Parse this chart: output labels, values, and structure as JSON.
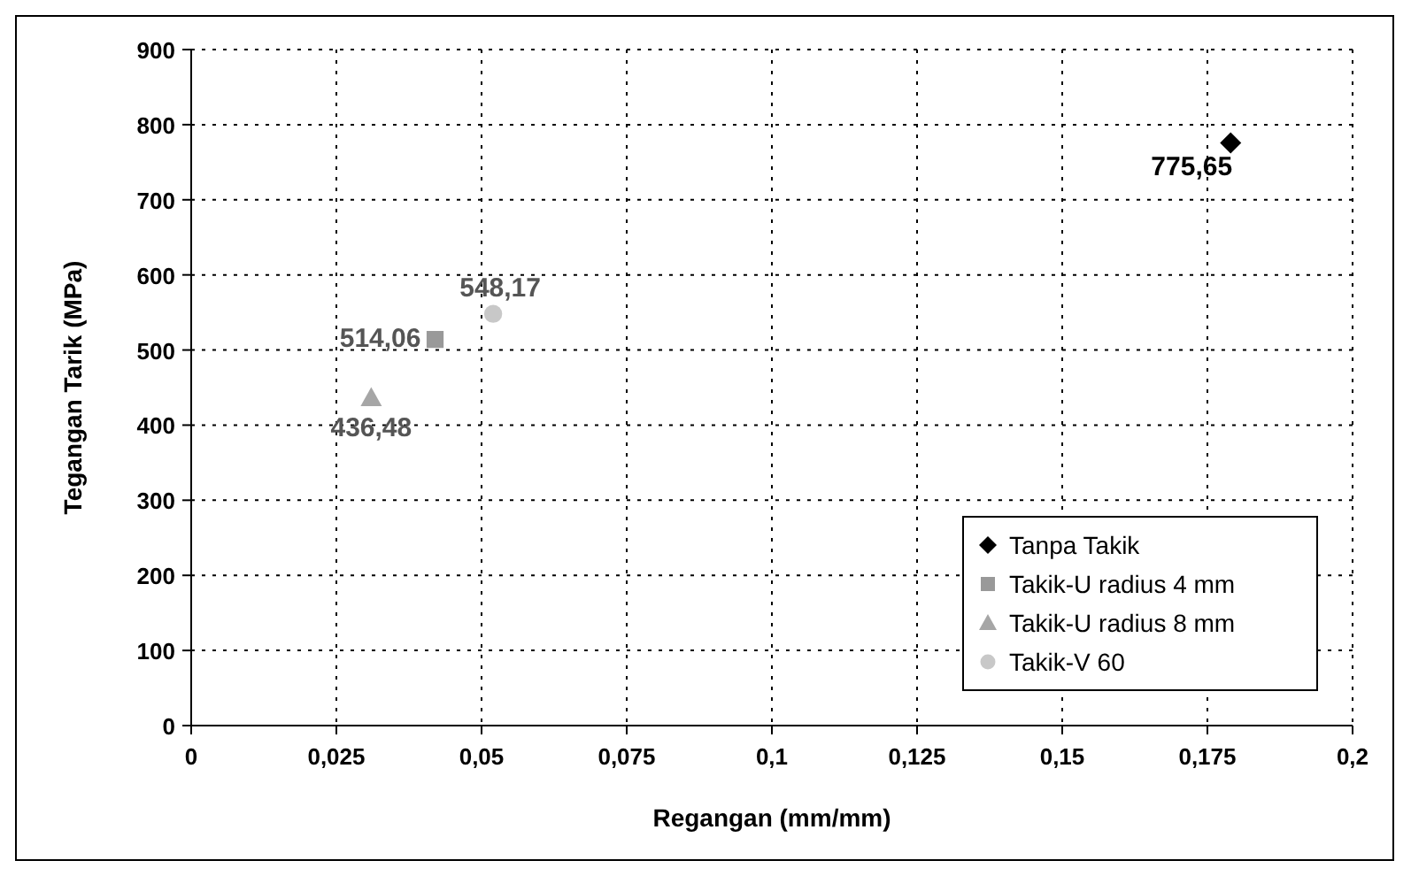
{
  "chart_data": {
    "type": "scatter",
    "xlabel": "Regangan (mm/mm)",
    "ylabel": "Tegangan Tarik (MPa)",
    "xlim": [
      0,
      0.2
    ],
    "xticks": [
      0,
      {
        "value": 0.025,
        "label": "0,025"
      },
      {
        "value": 0.05,
        "label": "0,05"
      },
      {
        "value": 0.075,
        "label": "0,075"
      },
      {
        "value": 0.1,
        "label": "0,1"
      },
      {
        "value": 0.125,
        "label": "0,125"
      },
      {
        "value": 0.15,
        "label": "0,15"
      },
      {
        "value": 0.175,
        "label": "0,175"
      },
      {
        "value": 0.2,
        "label": "0,2"
      }
    ],
    "ylim": [
      0,
      900
    ],
    "yticks": [
      0,
      100,
      200,
      300,
      400,
      500,
      600,
      700,
      800,
      900
    ],
    "grid": true,
    "legend": "bottom right",
    "series": [
      {
        "name": "Tanpa Takik",
        "color": "#000000",
        "marker": "diamond",
        "x": [
          0.179
        ],
        "values": [
          775.65
        ],
        "value_labels": [
          "775,65"
        ]
      },
      {
        "name": "Takik-U radius 4 mm",
        "color": "#999999",
        "marker": "square",
        "x": [
          0.042
        ],
        "values": [
          514.06
        ],
        "value_labels": [
          "514,06"
        ]
      },
      {
        "name": "Takik-U radius 8 mm",
        "color": "#a6a6a6",
        "marker": "triangle",
        "x": [
          0.031
        ],
        "values": [
          436.48
        ],
        "value_labels": [
          "436,48"
        ]
      },
      {
        "name": "Takik-V 60",
        "color": "#c8c8c8",
        "marker": "circle",
        "x": [
          0.052
        ],
        "values": [
          548.17
        ],
        "value_labels": [
          "548,17"
        ]
      }
    ]
  }
}
